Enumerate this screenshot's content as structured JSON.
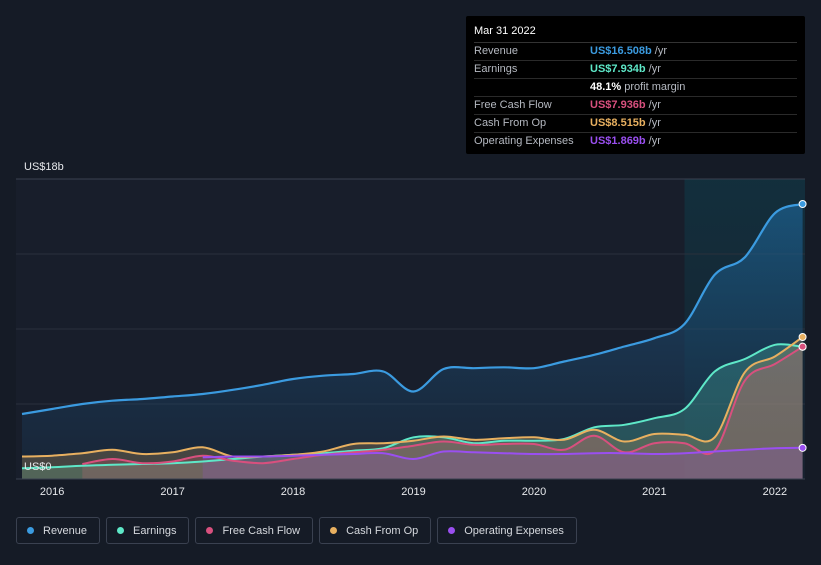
{
  "tooltip": {
    "date": "Mar 31 2022",
    "rows": [
      {
        "label": "Revenue",
        "value": "US$16.508b",
        "unit": "/yr",
        "color": "#3b9be0"
      },
      {
        "label": "Earnings",
        "value": "US$7.934b",
        "unit": "/yr",
        "color": "#5ee8c8"
      },
      {
        "label": "",
        "value": "48.1%",
        "unit": "profit margin",
        "color": "#ffffff"
      },
      {
        "label": "Free Cash Flow",
        "value": "US$7.936b",
        "unit": "/yr",
        "color": "#d8507e"
      },
      {
        "label": "Cash From Op",
        "value": "US$8.515b",
        "unit": "/yr",
        "color": "#e8b060"
      },
      {
        "label": "Operating Expenses",
        "value": "US$1.869b",
        "unit": "/yr",
        "color": "#9a4ff0"
      }
    ]
  },
  "chart_data": {
    "type": "area",
    "title": "",
    "xlabel": "",
    "ylabel": "",
    "y_top_label": "US$18b",
    "y_bottom_label": "US$0",
    "ylim": [
      0,
      18
    ],
    "xlim": [
      2015.7,
      2022.25
    ],
    "x_ticks": [
      2016,
      2017,
      2018,
      2019,
      2020,
      2021,
      2022
    ],
    "x_tick_labels": [
      "2016",
      "2017",
      "2018",
      "2019",
      "2020",
      "2021",
      "2022"
    ],
    "highlight_from": 2021.25,
    "series": [
      {
        "name": "Revenue",
        "color": "#3b9be0",
        "points": [
          [
            2015.75,
            3.9
          ],
          [
            2016.0,
            4.2
          ],
          [
            2016.25,
            4.5
          ],
          [
            2016.5,
            4.7
          ],
          [
            2016.75,
            4.8
          ],
          [
            2017.0,
            4.95
          ],
          [
            2017.25,
            5.1
          ],
          [
            2017.5,
            5.35
          ],
          [
            2017.75,
            5.65
          ],
          [
            2018.0,
            6.0
          ],
          [
            2018.25,
            6.2
          ],
          [
            2018.5,
            6.3
          ],
          [
            2018.75,
            6.45
          ],
          [
            2019.0,
            5.25
          ],
          [
            2019.25,
            6.6
          ],
          [
            2019.5,
            6.65
          ],
          [
            2019.75,
            6.7
          ],
          [
            2020.0,
            6.65
          ],
          [
            2020.25,
            7.05
          ],
          [
            2020.5,
            7.45
          ],
          [
            2020.75,
            7.95
          ],
          [
            2021.0,
            8.45
          ],
          [
            2021.25,
            9.3
          ],
          [
            2021.5,
            12.25
          ],
          [
            2021.75,
            13.3
          ],
          [
            2022.0,
            15.95
          ],
          [
            2022.23,
            16.5
          ]
        ]
      },
      {
        "name": "Earnings",
        "color": "#5ee8c8",
        "points": [
          [
            2015.75,
            0.65
          ],
          [
            2016.0,
            0.7
          ],
          [
            2016.25,
            0.8
          ],
          [
            2016.5,
            0.85
          ],
          [
            2016.75,
            0.9
          ],
          [
            2017.0,
            0.95
          ],
          [
            2017.25,
            1.05
          ],
          [
            2017.5,
            1.2
          ],
          [
            2017.75,
            1.35
          ],
          [
            2018.0,
            1.45
          ],
          [
            2018.25,
            1.55
          ],
          [
            2018.5,
            1.7
          ],
          [
            2018.75,
            1.85
          ],
          [
            2019.0,
            2.5
          ],
          [
            2019.25,
            2.5
          ],
          [
            2019.5,
            2.15
          ],
          [
            2019.75,
            2.3
          ],
          [
            2020.0,
            2.3
          ],
          [
            2020.25,
            2.4
          ],
          [
            2020.5,
            3.1
          ],
          [
            2020.75,
            3.25
          ],
          [
            2021.0,
            3.65
          ],
          [
            2021.25,
            4.2
          ],
          [
            2021.5,
            6.45
          ],
          [
            2021.75,
            7.2
          ],
          [
            2022.0,
            8.05
          ],
          [
            2022.23,
            7.93
          ]
        ]
      },
      {
        "name": "Free Cash Flow",
        "color": "#d8507e",
        "points": [
          [
            2016.25,
            0.9
          ],
          [
            2016.5,
            1.2
          ],
          [
            2016.75,
            0.95
          ],
          [
            2017.0,
            1.05
          ],
          [
            2017.25,
            1.4
          ],
          [
            2017.5,
            1.1
          ],
          [
            2017.75,
            0.95
          ],
          [
            2018.0,
            1.2
          ],
          [
            2018.25,
            1.45
          ],
          [
            2018.5,
            1.6
          ],
          [
            2018.75,
            1.75
          ],
          [
            2019.0,
            2.0
          ],
          [
            2019.25,
            2.25
          ],
          [
            2019.5,
            2.05
          ],
          [
            2019.75,
            2.1
          ],
          [
            2020.0,
            2.1
          ],
          [
            2020.25,
            1.75
          ],
          [
            2020.5,
            2.6
          ],
          [
            2020.75,
            1.6
          ],
          [
            2021.0,
            2.15
          ],
          [
            2021.25,
            2.15
          ],
          [
            2021.5,
            1.7
          ],
          [
            2021.75,
            5.9
          ],
          [
            2022.0,
            6.9
          ],
          [
            2022.23,
            7.94
          ]
        ]
      },
      {
        "name": "Cash From Op",
        "color": "#e8b060",
        "points": [
          [
            2015.75,
            1.35
          ],
          [
            2016.0,
            1.4
          ],
          [
            2016.25,
            1.55
          ],
          [
            2016.5,
            1.75
          ],
          [
            2016.75,
            1.5
          ],
          [
            2017.0,
            1.6
          ],
          [
            2017.25,
            1.9
          ],
          [
            2017.5,
            1.35
          ],
          [
            2017.75,
            1.35
          ],
          [
            2018.0,
            1.45
          ],
          [
            2018.25,
            1.65
          ],
          [
            2018.5,
            2.1
          ],
          [
            2018.75,
            2.15
          ],
          [
            2019.0,
            2.3
          ],
          [
            2019.25,
            2.55
          ],
          [
            2019.5,
            2.35
          ],
          [
            2019.75,
            2.45
          ],
          [
            2020.0,
            2.5
          ],
          [
            2020.25,
            2.35
          ],
          [
            2020.5,
            2.95
          ],
          [
            2020.75,
            2.25
          ],
          [
            2021.0,
            2.7
          ],
          [
            2021.25,
            2.65
          ],
          [
            2021.5,
            2.5
          ],
          [
            2021.75,
            6.4
          ],
          [
            2022.0,
            7.35
          ],
          [
            2022.23,
            8.52
          ]
        ]
      },
      {
        "name": "Operating Expenses",
        "color": "#9a4ff0",
        "points": [
          [
            2017.25,
            1.3
          ],
          [
            2017.5,
            1.35
          ],
          [
            2017.75,
            1.35
          ],
          [
            2018.0,
            1.4
          ],
          [
            2018.25,
            1.45
          ],
          [
            2018.5,
            1.5
          ],
          [
            2018.75,
            1.55
          ],
          [
            2019.0,
            1.2
          ],
          [
            2019.25,
            1.65
          ],
          [
            2019.5,
            1.6
          ],
          [
            2019.75,
            1.55
          ],
          [
            2020.0,
            1.5
          ],
          [
            2020.25,
            1.5
          ],
          [
            2020.5,
            1.55
          ],
          [
            2020.75,
            1.55
          ],
          [
            2021.0,
            1.5
          ],
          [
            2021.25,
            1.55
          ],
          [
            2021.5,
            1.65
          ],
          [
            2021.75,
            1.75
          ],
          [
            2022.0,
            1.85
          ],
          [
            2022.23,
            1.87
          ]
        ]
      }
    ]
  },
  "legend": {
    "items": [
      {
        "label": "Revenue",
        "color": "#3b9be0"
      },
      {
        "label": "Earnings",
        "color": "#5ee8c8"
      },
      {
        "label": "Free Cash Flow",
        "color": "#d8507e"
      },
      {
        "label": "Cash From Op",
        "color": "#e8b060"
      },
      {
        "label": "Operating Expenses",
        "color": "#9a4ff0"
      }
    ]
  }
}
